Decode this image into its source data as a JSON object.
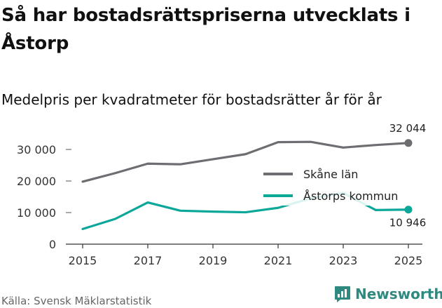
{
  "title": "Så har bostadsrättspriserna utvecklats i Åstorp",
  "subtitle": "Medelpris per kvadratmeter för bostadsrätter år för år",
  "source": "Källa: Svensk Mäklarstatistik",
  "brand": "Newsworthy",
  "colors": {
    "skane": "#6d6d72",
    "astorp": "#0ba89a",
    "axis": "#333333",
    "grid": "#999999",
    "brand": "#2e8a80"
  },
  "chart_data": {
    "type": "line",
    "x": [
      2015,
      2016,
      2017,
      2018,
      2019,
      2020,
      2021,
      2022,
      2023,
      2024,
      2025
    ],
    "xticks": [
      "2015",
      "2017",
      "2019",
      "2021",
      "2023",
      "2025"
    ],
    "yticks": [
      "0",
      "10 000",
      "20 000",
      "30 000"
    ],
    "ylim": [
      0,
      35000
    ],
    "xlim": [
      2015,
      2025
    ],
    "grid": false,
    "legend_position": "right",
    "series": [
      {
        "name": "Skåne län",
        "color": "#6d6d72",
        "values": [
          19800,
          22500,
          25500,
          25300,
          26900,
          28500,
          32300,
          32400,
          30600,
          31400,
          32044
        ],
        "end_label": "32 044"
      },
      {
        "name": "Åstorps kommun",
        "color": "#0ba89a",
        "values": [
          4800,
          8000,
          13200,
          10600,
          10300,
          10100,
          11500,
          14500,
          16200,
          10800,
          10946
        ],
        "end_label": "10 946"
      }
    ]
  }
}
